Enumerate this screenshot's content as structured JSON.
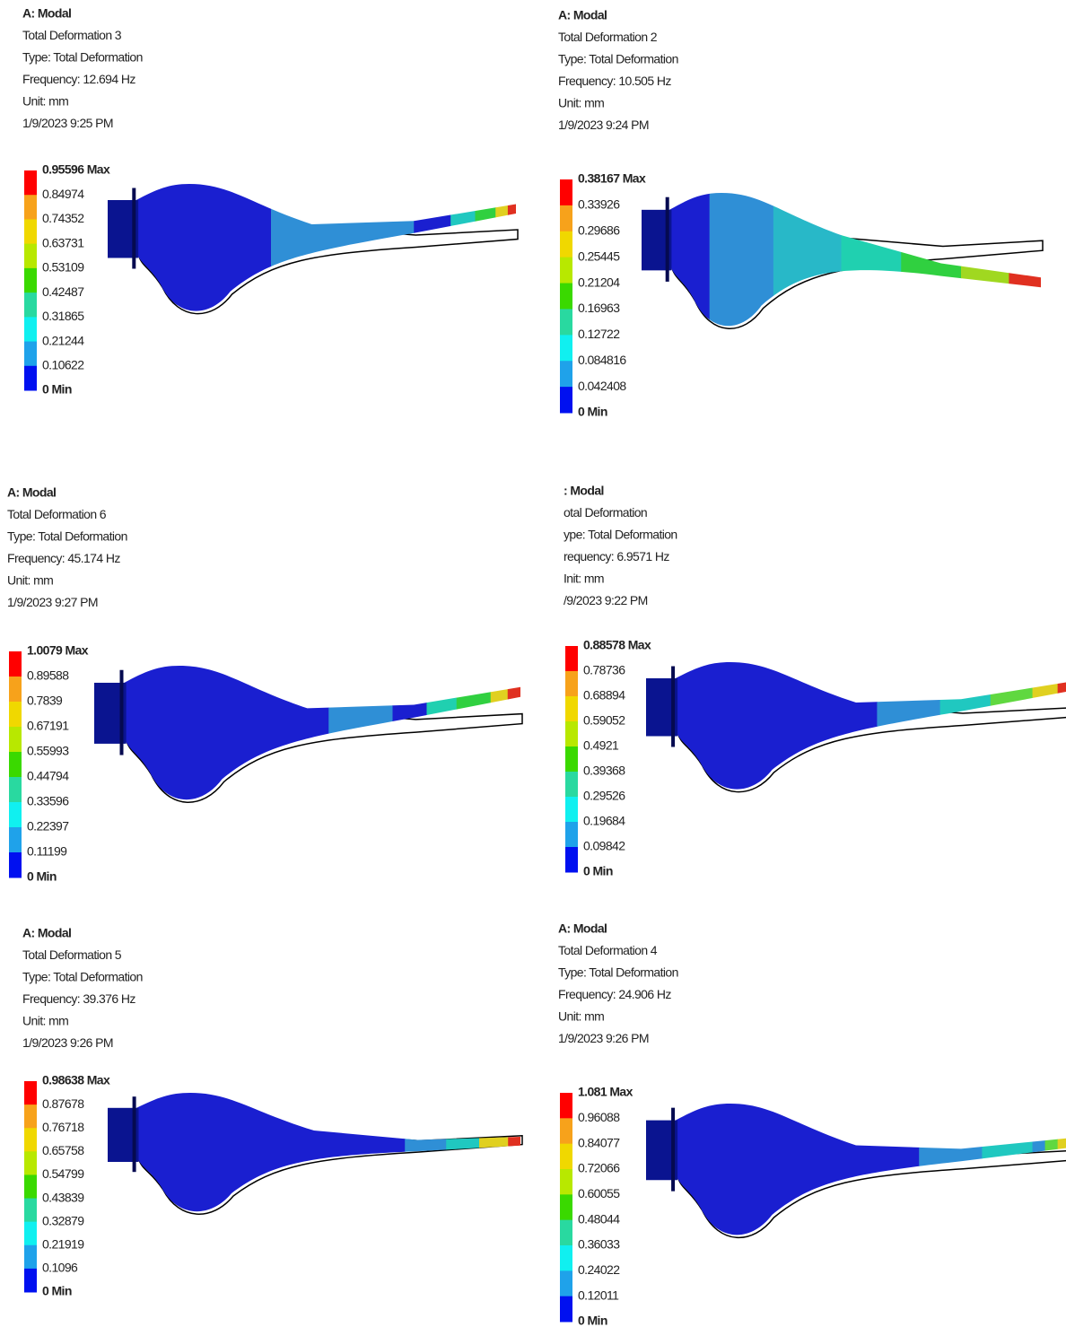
{
  "panels": [
    {
      "header": [
        "A: Modal",
        "Total Deformation 3",
        "Type: Total Deformation",
        "Frequency: 12.694 Hz",
        "Unit: mm",
        "1/9/2023 9:25 PM"
      ],
      "legend": [
        "0.95596 Max",
        "0.84974",
        "0.74352",
        "0.63731",
        "0.53109",
        "0.42487",
        "0.31865",
        "0.21244",
        "0.10622",
        "0 Min"
      ]
    },
    {
      "header": [
        "A: Modal",
        "Total Deformation 2",
        "Type: Total Deformation",
        "Frequency: 10.505 Hz",
        "Unit: mm",
        "1/9/2023 9:24 PM"
      ],
      "legend": [
        "0.38167 Max",
        "0.33926",
        "0.29686",
        "0.25445",
        "0.21204",
        "0.16963",
        "0.12722",
        "0.084816",
        "0.042408",
        "0 Min"
      ]
    },
    {
      "header": [
        "A: Modal",
        "Total Deformation 6",
        "Type: Total Deformation",
        "Frequency: 45.174 Hz",
        "Unit: mm",
        "1/9/2023 9:27 PM"
      ],
      "legend": [
        "1.0079 Max",
        "0.89588",
        "0.7839",
        "0.67191",
        "0.55993",
        "0.44794",
        "0.33596",
        "0.22397",
        "0.11199",
        "0 Min"
      ]
    },
    {
      "header": [
        ": Modal",
        "otal Deformation",
        "ype: Total Deformation",
        "requency: 6.9571 Hz",
        "Init: mm",
        "/9/2023 9:22 PM"
      ],
      "legend": [
        "0.88578 Max",
        "0.78736",
        "0.68894",
        "0.59052",
        "0.4921",
        "0.39368",
        "0.29526",
        "0.19684",
        "0.09842",
        "0 Min"
      ]
    },
    {
      "header": [
        "A: Modal",
        "Total Deformation 5",
        "Type: Total Deformation",
        "Frequency: 39.376 Hz",
        "Unit: mm",
        "1/9/2023 9:26 PM"
      ],
      "legend": [
        "0.98638 Max",
        "0.87678",
        "0.76718",
        "0.65758",
        "0.54799",
        "0.43839",
        "0.32879",
        "0.21919",
        "0.1096",
        "0 Min"
      ]
    },
    {
      "header": [
        "A: Modal",
        "Total Deformation 4",
        "Type: Total Deformation",
        "Frequency: 24.906 Hz",
        "Unit: mm",
        "1/9/2023 9:26 PM"
      ],
      "legend": [
        "1.081 Max",
        "0.96088",
        "0.84077",
        "0.72066",
        "0.60055",
        "0.48044",
        "0.36033",
        "0.24022",
        "0.12011",
        "0 Min"
      ]
    }
  ]
}
